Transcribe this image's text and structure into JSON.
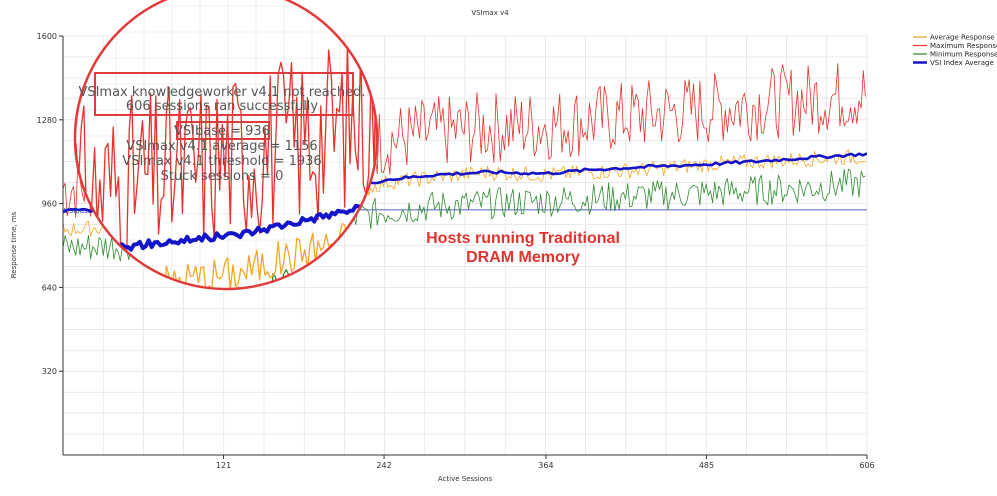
{
  "chart_data": {
    "type": "line",
    "title": "VSImax v4",
    "xlabel": "Active Sessions",
    "ylabel": "Response time, ms",
    "xlim": [
      0,
      606
    ],
    "ylim": [
      0,
      1600
    ],
    "x_ticks": [
      121,
      242,
      364,
      485,
      606
    ],
    "y_ticks": [
      320,
      640,
      960,
      1280,
      1600
    ],
    "grid": true,
    "legend_position": "top-right",
    "vsibase": 936,
    "vsibase_label": "VSIbase",
    "series": [
      {
        "name": "Average Response",
        "color": "#f5a623",
        "x": [
          0,
          40,
          80,
          121,
          160,
          200,
          242,
          280,
          320,
          364,
          400,
          440,
          485,
          520,
          560,
          606
        ],
        "y": [
          860,
          870,
          890,
          900,
          930,
          960,
          1040,
          1060,
          1080,
          1070,
          1080,
          1090,
          1110,
          1120,
          1130,
          1140
        ]
      },
      {
        "name": "Maximum Response",
        "color": "#e8312a",
        "x": [
          0,
          40,
          80,
          121,
          160,
          200,
          242,
          280,
          320,
          364,
          400,
          440,
          485,
          520,
          560,
          606
        ],
        "y": [
          1020,
          1040,
          1060,
          1090,
          1110,
          1140,
          1200,
          1230,
          1250,
          1260,
          1280,
          1300,
          1320,
          1340,
          1360,
          1380
        ]
      },
      {
        "name": "Minimum Response",
        "color": "#2e8b2e",
        "x": [
          0,
          40,
          80,
          121,
          160,
          200,
          242,
          280,
          320,
          364,
          400,
          440,
          485,
          520,
          560,
          606
        ],
        "y": [
          790,
          800,
          810,
          830,
          850,
          880,
          930,
          950,
          960,
          970,
          980,
          990,
          1000,
          1010,
          1020,
          1040
        ]
      },
      {
        "name": "VSI Index Average",
        "color": "#1414c8",
        "x": [
          0,
          40,
          80,
          121,
          160,
          200,
          242,
          280,
          320,
          364,
          400,
          440,
          485,
          520,
          560,
          606
        ],
        "y": [
          930,
          940,
          950,
          960,
          980,
          1000,
          1050,
          1070,
          1080,
          1075,
          1090,
          1100,
          1110,
          1120,
          1135,
          1150
        ]
      }
    ],
    "annotations": {
      "line1": "VSImax knowledgeworker v4.1 not reached.",
      "line2": "606 sessions ran successfully",
      "line3": "VSIbase = 936",
      "line4": "VSImax v4.1 average = 1156",
      "line5": "VSImax v4.1 threshold = 1936",
      "line6": "Stuck sessions = 0"
    },
    "overlay_text": [
      "Hosts running Traditional",
      "DRAM Memory"
    ]
  },
  "colors": {
    "zoom_circle": "#e03a3a",
    "highlight_box": "#e03a3a",
    "grid": "#dcdcdc",
    "overlay_text": "#e0332e"
  }
}
